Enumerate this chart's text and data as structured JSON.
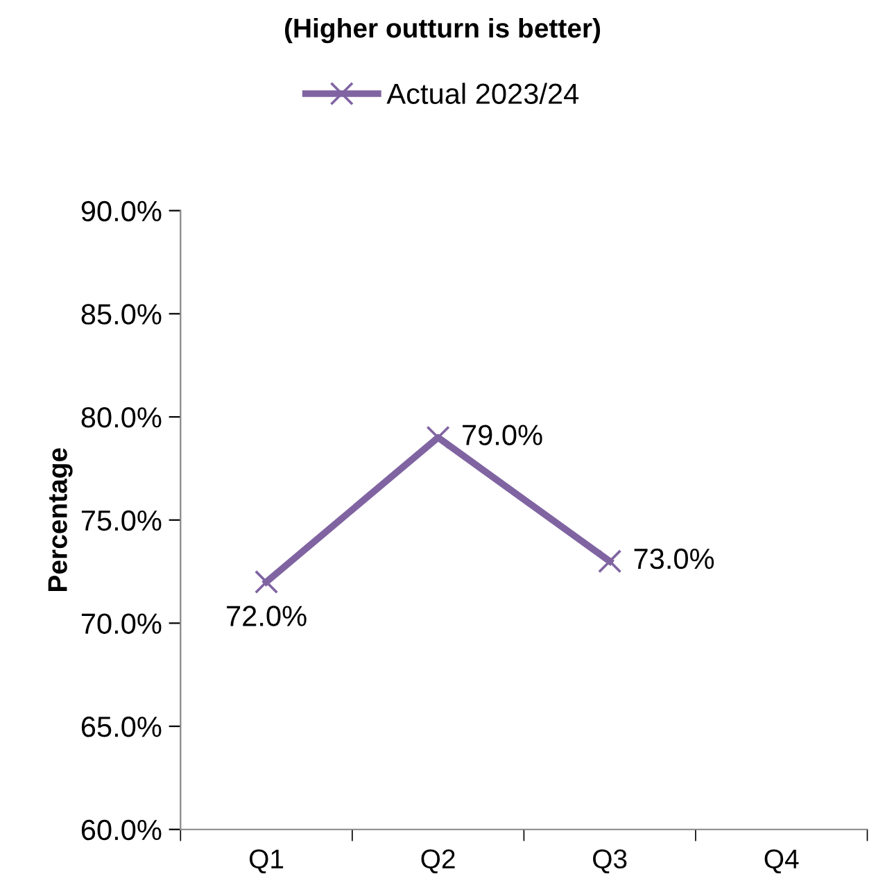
{
  "chart_data": {
    "type": "line",
    "title": "(Higher outturn is better)",
    "ylabel": "Percentage",
    "categories": [
      "Q1",
      "Q2",
      "Q3",
      "Q4"
    ],
    "series": [
      {
        "name": "Actual 2023/24",
        "color": "#8064a2",
        "values": [
          72,
          79,
          73,
          null
        ],
        "value_labels": [
          "72.0%",
          "79.0%",
          "73.0%",
          null
        ]
      }
    ],
    "ylim": [
      60,
      90
    ],
    "yticks": [
      {
        "value": 60,
        "label": "60.0%"
      },
      {
        "value": 65,
        "label": "65.0%"
      },
      {
        "value": 70,
        "label": "70.0%"
      },
      {
        "value": 75,
        "label": "75.0%"
      },
      {
        "value": 80,
        "label": "80.0%"
      },
      {
        "value": 85,
        "label": "85.0%"
      },
      {
        "value": 90,
        "label": "90.0%"
      }
    ],
    "legend": "top",
    "marker": "cross",
    "line_style": "solid",
    "grid": false
  }
}
